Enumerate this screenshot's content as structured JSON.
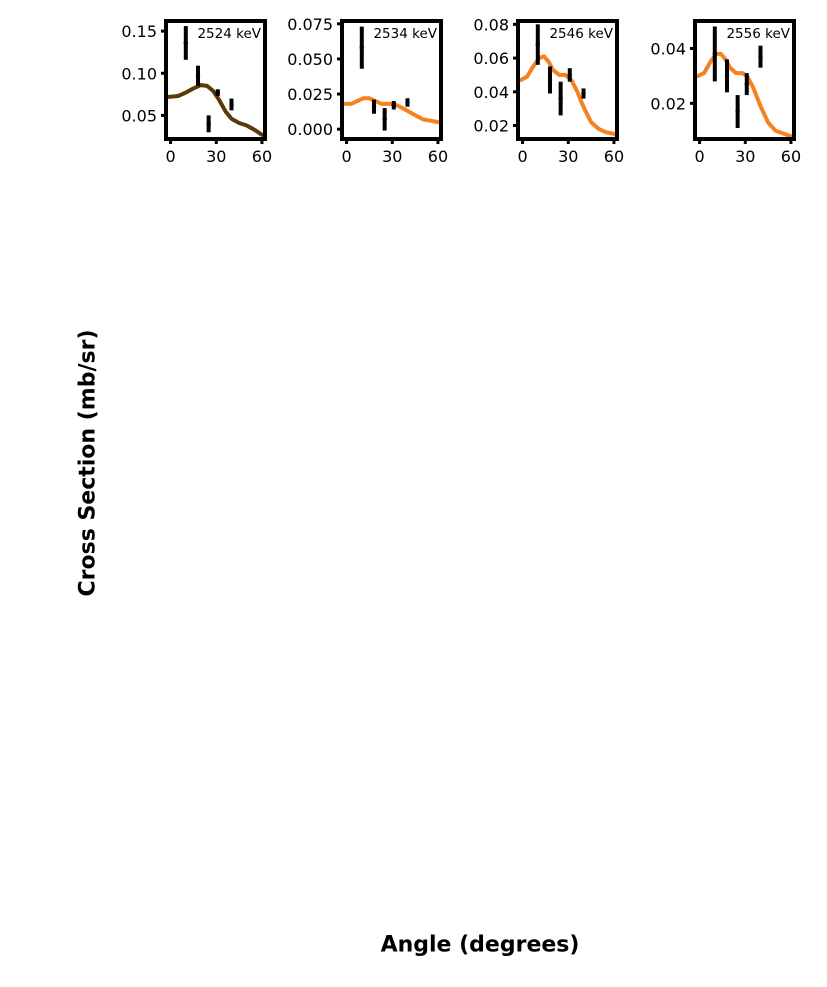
{
  "figure": {
    "ylabel": "Cross Section (mb/sr)",
    "xlabel": "Angle (degrees)"
  },
  "colors": {
    "fit_dark": "#5a3a06",
    "fit_orange": "#f58220",
    "points": "#000000",
    "axes": "#000000"
  },
  "chart_data": [
    {
      "type": "scatter",
      "title": "2524 keV",
      "xlim": [
        -3,
        62
      ],
      "ylim": [
        0.022,
        0.162
      ],
      "xticks": [
        0,
        30,
        60
      ],
      "yticks": [
        0.05,
        0.1,
        0.15
      ],
      "ytick_labels": [
        "0.05",
        "0.10",
        "0.15"
      ],
      "fit_color": "fit_dark",
      "points": [
        {
          "x": 10,
          "y": 0.136,
          "err": 0.02
        },
        {
          "x": 18,
          "y": 0.097,
          "err": 0.012
        },
        {
          "x": 25,
          "y": 0.04,
          "err": 0.01
        },
        {
          "x": 31,
          "y": 0.077,
          "err": 0.004
        },
        {
          "x": 40,
          "y": 0.063,
          "err": 0.007
        }
      ],
      "fit": [
        [
          -1,
          0.072
        ],
        [
          5,
          0.073
        ],
        [
          10,
          0.077
        ],
        [
          15,
          0.082
        ],
        [
          20,
          0.086
        ],
        [
          24,
          0.085
        ],
        [
          28,
          0.079
        ],
        [
          32,
          0.068
        ],
        [
          36,
          0.055
        ],
        [
          40,
          0.046
        ],
        [
          45,
          0.041
        ],
        [
          50,
          0.038
        ],
        [
          55,
          0.033
        ],
        [
          60,
          0.027
        ]
      ]
    },
    {
      "type": "scatter",
      "title": "2534 keV",
      "xlim": [
        -3,
        62
      ],
      "ylim": [
        -0.007,
        0.077
      ],
      "xticks": [
        0,
        30,
        60
      ],
      "yticks": [
        0.0,
        0.025,
        0.05,
        0.075
      ],
      "ytick_labels": [
        "0.000",
        "0.025",
        "0.050",
        "0.075"
      ],
      "fit_color": "fit_orange",
      "points": [
        {
          "x": 10,
          "y": 0.058,
          "err": 0.015
        },
        {
          "x": 18,
          "y": 0.016,
          "err": 0.005
        },
        {
          "x": 25,
          "y": 0.007,
          "err": 0.008
        },
        {
          "x": 31,
          "y": 0.017,
          "err": 0.003
        },
        {
          "x": 40,
          "y": 0.019,
          "err": 0.003
        }
      ],
      "fit": [
        [
          -1,
          0.018
        ],
        [
          3,
          0.018
        ],
        [
          7,
          0.02
        ],
        [
          11,
          0.022
        ],
        [
          15,
          0.022
        ],
        [
          19,
          0.02
        ],
        [
          23,
          0.018
        ],
        [
          27,
          0.018
        ],
        [
          31,
          0.018
        ],
        [
          35,
          0.016
        ],
        [
          40,
          0.013
        ],
        [
          45,
          0.01
        ],
        [
          50,
          0.007
        ],
        [
          55,
          0.006
        ],
        [
          60,
          0.005
        ]
      ]
    },
    {
      "type": "scatter",
      "title": "2546 keV",
      "xlim": [
        -3,
        62
      ],
      "ylim": [
        0.012,
        0.082
      ],
      "xticks": [
        0,
        30,
        60
      ],
      "yticks": [
        0.02,
        0.04,
        0.06,
        0.08
      ],
      "ytick_labels": [
        "0.02",
        "0.04",
        "0.06",
        "0.08"
      ],
      "fit_color": "fit_orange",
      "points": [
        {
          "x": 10,
          "y": 0.068,
          "err": 0.012
        },
        {
          "x": 18,
          "y": 0.047,
          "err": 0.008
        },
        {
          "x": 25,
          "y": 0.036,
          "err": 0.01
        },
        {
          "x": 31,
          "y": 0.05,
          "err": 0.004
        },
        {
          "x": 40,
          "y": 0.039,
          "err": 0.003
        }
      ],
      "fit": [
        [
          -1,
          0.047
        ],
        [
          3,
          0.049
        ],
        [
          7,
          0.055
        ],
        [
          11,
          0.06
        ],
        [
          14,
          0.061
        ],
        [
          17,
          0.058
        ],
        [
          20,
          0.053
        ],
        [
          24,
          0.05
        ],
        [
          28,
          0.05
        ],
        [
          32,
          0.047
        ],
        [
          36,
          0.04
        ],
        [
          40,
          0.031
        ],
        [
          45,
          0.022
        ],
        [
          50,
          0.018
        ],
        [
          55,
          0.016
        ],
        [
          60,
          0.015
        ]
      ]
    },
    {
      "type": "scatter",
      "title": "2556 keV",
      "xlim": [
        -3,
        62
      ],
      "ylim": [
        0.007,
        0.05
      ],
      "xticks": [
        0,
        30,
        60
      ],
      "yticks": [
        0.02,
        0.04
      ],
      "ytick_labels": [
        "0.02",
        "0.04"
      ],
      "fit_color": "fit_orange",
      "points": [
        {
          "x": 10,
          "y": 0.038,
          "err": 0.01
        },
        {
          "x": 18,
          "y": 0.03,
          "err": 0.006
        },
        {
          "x": 25,
          "y": 0.017,
          "err": 0.006
        },
        {
          "x": 31,
          "y": 0.027,
          "err": 0.004
        },
        {
          "x": 40,
          "y": 0.037,
          "err": 0.004
        }
      ],
      "fit": [
        [
          -1,
          0.03
        ],
        [
          3,
          0.031
        ],
        [
          7,
          0.035
        ],
        [
          11,
          0.038
        ],
        [
          14,
          0.038
        ],
        [
          17,
          0.036
        ],
        [
          20,
          0.033
        ],
        [
          24,
          0.031
        ],
        [
          28,
          0.031
        ],
        [
          31,
          0.03
        ],
        [
          35,
          0.026
        ],
        [
          40,
          0.019
        ],
        [
          45,
          0.013
        ],
        [
          50,
          0.01
        ],
        [
          55,
          0.009
        ],
        [
          60,
          0.008
        ]
      ]
    }
  ]
}
